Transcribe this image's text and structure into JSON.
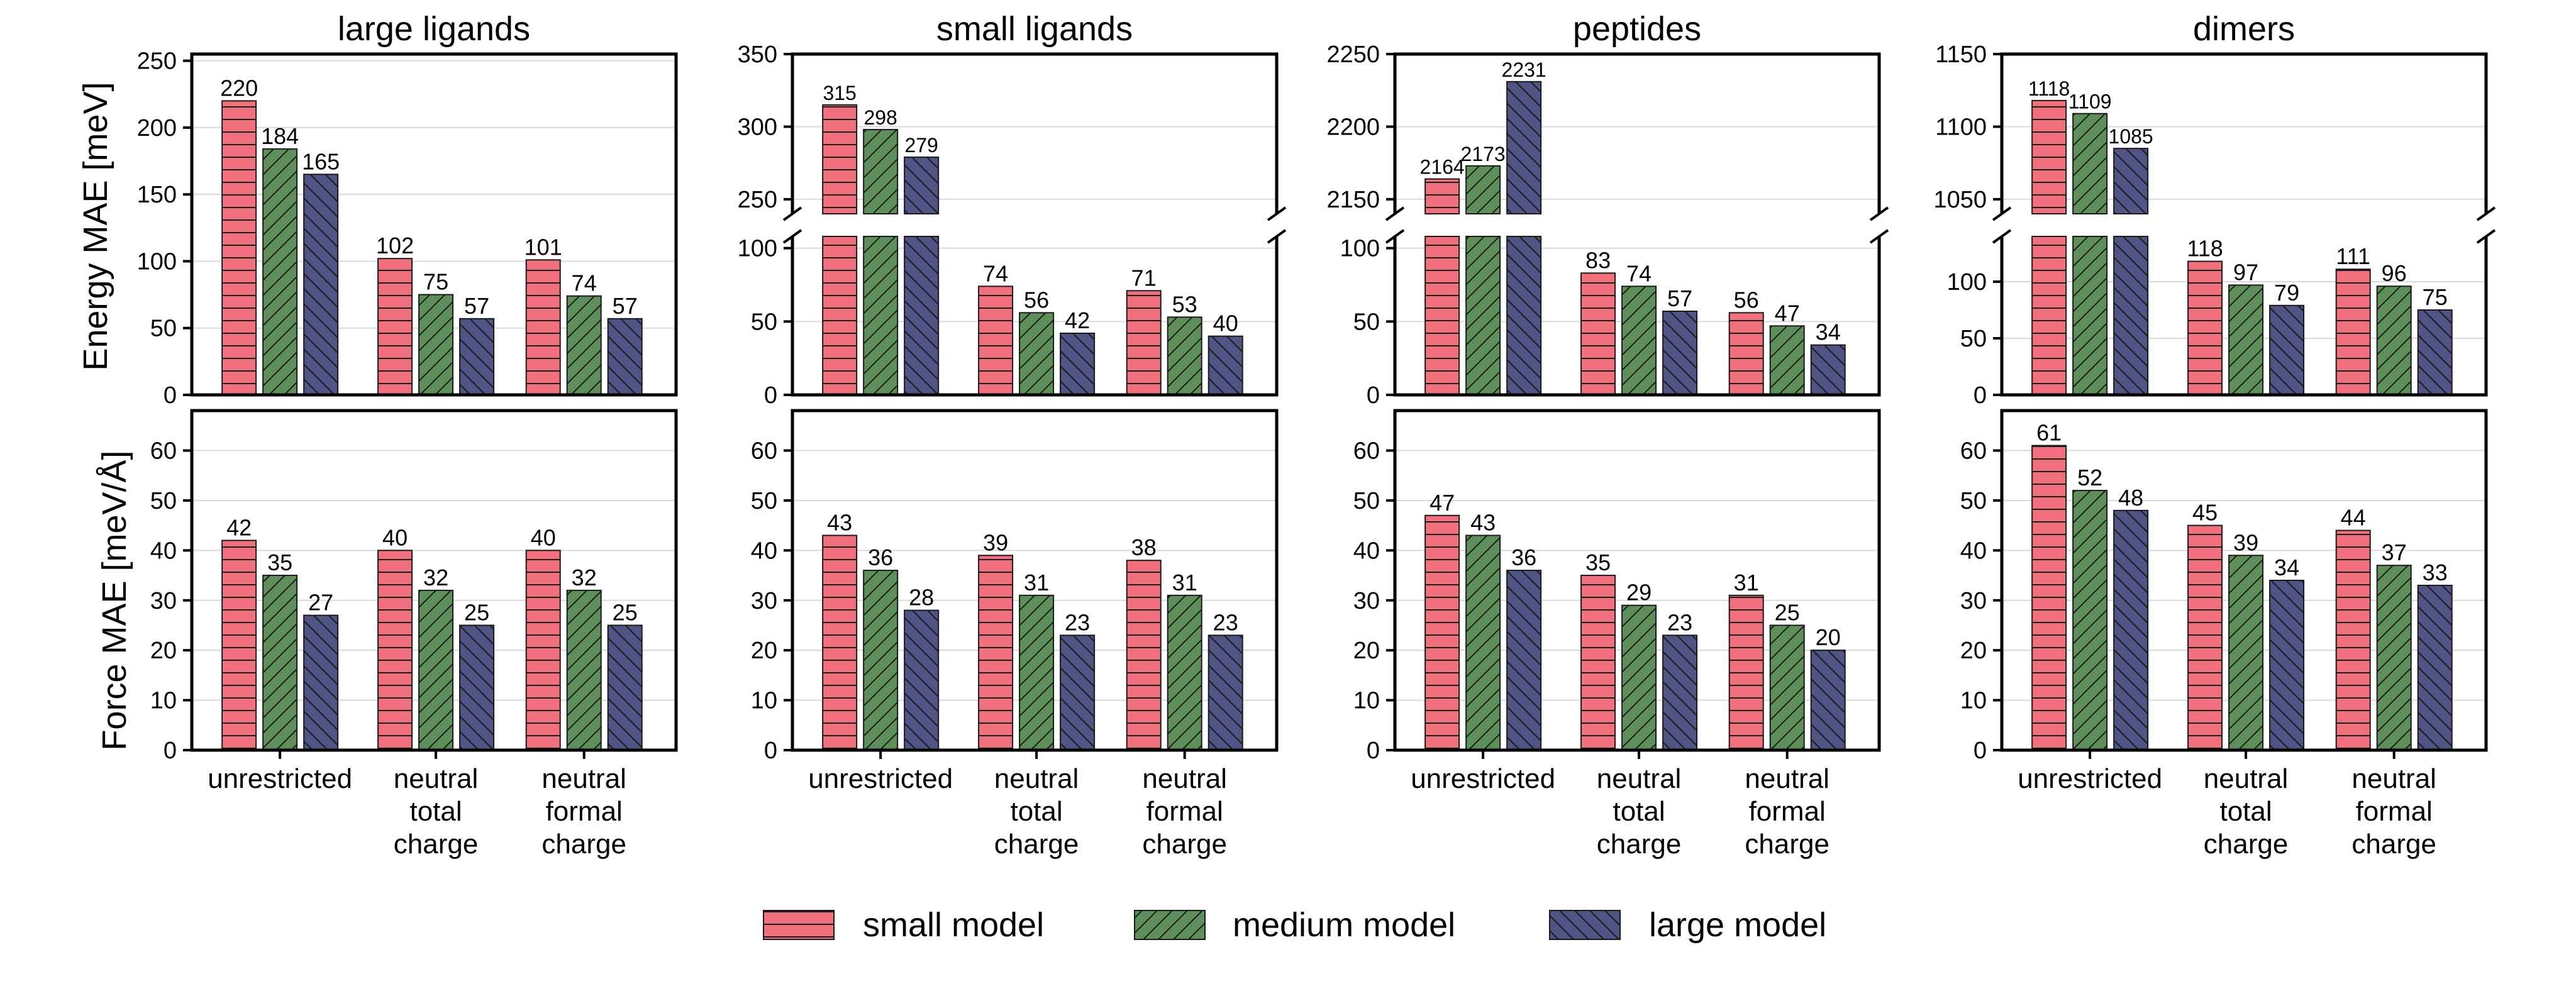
{
  "colors": {
    "small": "#F0707E",
    "medium": "#5E8F5B",
    "large": "#4F5484",
    "grid": "#d9d9d9"
  },
  "legend": [
    {
      "key": "small",
      "label": "small model"
    },
    {
      "key": "medium",
      "label": "medium model"
    },
    {
      "key": "large",
      "label": "large model"
    }
  ],
  "categories": [
    [
      "unrestricted"
    ],
    [
      "neutral",
      "total",
      "charge"
    ],
    [
      "neutral",
      "formal",
      "charge"
    ]
  ],
  "energy_ylabel": "Energy MAE [meV]",
  "force_ylabel": "Force MAE [meV/Å]",
  "chart_data": [
    {
      "title": "large ligands",
      "energy": {
        "type": "bar",
        "ylabel": "Energy MAE [meV]",
        "broken": false,
        "ylim": [
          0,
          255
        ],
        "ticks": [
          0,
          50,
          100,
          150,
          200,
          250
        ],
        "series": [
          {
            "name": "small model",
            "values": [
              220,
              102,
              101
            ]
          },
          {
            "name": "medium model",
            "values": [
              184,
              75,
              74
            ]
          },
          {
            "name": "large model",
            "values": [
              165,
              57,
              57
            ]
          }
        ]
      },
      "force": {
        "type": "bar",
        "ylabel": "Force MAE [meV/Å]",
        "ylim": [
          0,
          68
        ],
        "ticks": [
          0,
          10,
          20,
          30,
          40,
          50,
          60
        ],
        "series": [
          {
            "name": "small model",
            "values": [
              42,
              40,
              40
            ]
          },
          {
            "name": "medium model",
            "values": [
              35,
              32,
              32
            ]
          },
          {
            "name": "large model",
            "values": [
              27,
              25,
              25
            ]
          }
        ]
      }
    },
    {
      "title": "small ligands",
      "energy": {
        "type": "bar",
        "broken": true,
        "upper_ylim": [
          240,
          350
        ],
        "upper_ticks": [
          250,
          300,
          350
        ],
        "lower_ylim": [
          0,
          108
        ],
        "lower_ticks": [
          0,
          50,
          100
        ],
        "series": [
          {
            "name": "small model",
            "values": [
              315,
              74,
              71
            ]
          },
          {
            "name": "medium model",
            "values": [
              298,
              56,
              53
            ]
          },
          {
            "name": "large model",
            "values": [
              279,
              42,
              40
            ]
          }
        ]
      },
      "force": {
        "type": "bar",
        "ylim": [
          0,
          68
        ],
        "ticks": [
          0,
          10,
          20,
          30,
          40,
          50,
          60
        ],
        "series": [
          {
            "name": "small model",
            "values": [
              43,
              39,
              38
            ]
          },
          {
            "name": "medium model",
            "values": [
              36,
              31,
              31
            ]
          },
          {
            "name": "large model",
            "values": [
              28,
              23,
              23
            ]
          }
        ]
      }
    },
    {
      "title": "peptides",
      "energy": {
        "type": "bar",
        "broken": true,
        "upper_ylim": [
          2140,
          2250
        ],
        "upper_ticks": [
          2150,
          2200,
          2250
        ],
        "lower_ylim": [
          0,
          108
        ],
        "lower_ticks": [
          0,
          50,
          100
        ],
        "series": [
          {
            "name": "small model",
            "values": [
              2164,
              83,
              56
            ]
          },
          {
            "name": "medium model",
            "values": [
              2173,
              74,
              47
            ]
          },
          {
            "name": "large model",
            "values": [
              2231,
              57,
              34
            ]
          }
        ]
      },
      "force": {
        "type": "bar",
        "ylim": [
          0,
          68
        ],
        "ticks": [
          0,
          10,
          20,
          30,
          40,
          50,
          60
        ],
        "series": [
          {
            "name": "small model",
            "values": [
              47,
              35,
              31
            ]
          },
          {
            "name": "medium model",
            "values": [
              43,
              29,
              25
            ]
          },
          {
            "name": "large model",
            "values": [
              36,
              23,
              20
            ]
          }
        ]
      }
    },
    {
      "title": "dimers",
      "energy": {
        "type": "bar",
        "broken": true,
        "upper_ylim": [
          1040,
          1150
        ],
        "upper_ticks": [
          1050,
          1100,
          1150
        ],
        "lower_ylim": [
          0,
          140
        ],
        "lower_ticks": [
          0,
          50,
          100
        ],
        "series": [
          {
            "name": "small model",
            "values": [
              1118,
              118,
              111
            ]
          },
          {
            "name": "medium model",
            "values": [
              1109,
              97,
              96
            ]
          },
          {
            "name": "large model",
            "values": [
              1085,
              79,
              75
            ]
          }
        ]
      },
      "force": {
        "type": "bar",
        "ylim": [
          0,
          68
        ],
        "ticks": [
          0,
          10,
          20,
          30,
          40,
          50,
          60
        ],
        "series": [
          {
            "name": "small model",
            "values": [
              61,
              45,
              44
            ]
          },
          {
            "name": "medium model",
            "values": [
              52,
              39,
              37
            ]
          },
          {
            "name": "large model",
            "values": [
              48,
              34,
              33
            ]
          }
        ]
      }
    }
  ]
}
